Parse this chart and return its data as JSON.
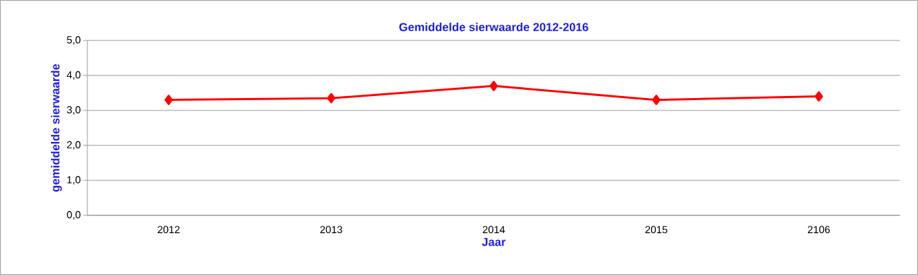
{
  "chart_data": {
    "type": "line",
    "title": "Gemiddelde sierwaarde 2012-2016",
    "xlabel": "Jaar",
    "ylabel": "gemiddelde sierwaarde",
    "categories": [
      "2012",
      "2013",
      "2014",
      "2015",
      "2106"
    ],
    "series": [
      {
        "color": "#ff0000",
        "values": [
          3.3,
          3.35,
          3.7,
          3.3,
          3.4
        ]
      }
    ],
    "ylim": [
      0,
      5
    ],
    "yticks": [
      {
        "value": 0,
        "label": "0,0"
      },
      {
        "value": 1,
        "label": "1,0"
      },
      {
        "value": 2,
        "label": "2,0"
      },
      {
        "value": 3,
        "label": "3,0"
      },
      {
        "value": 4,
        "label": "4,0"
      },
      {
        "value": 5,
        "label": "5,0"
      }
    ],
    "grid": "y",
    "marker": "diamond",
    "line_style": "solid"
  }
}
